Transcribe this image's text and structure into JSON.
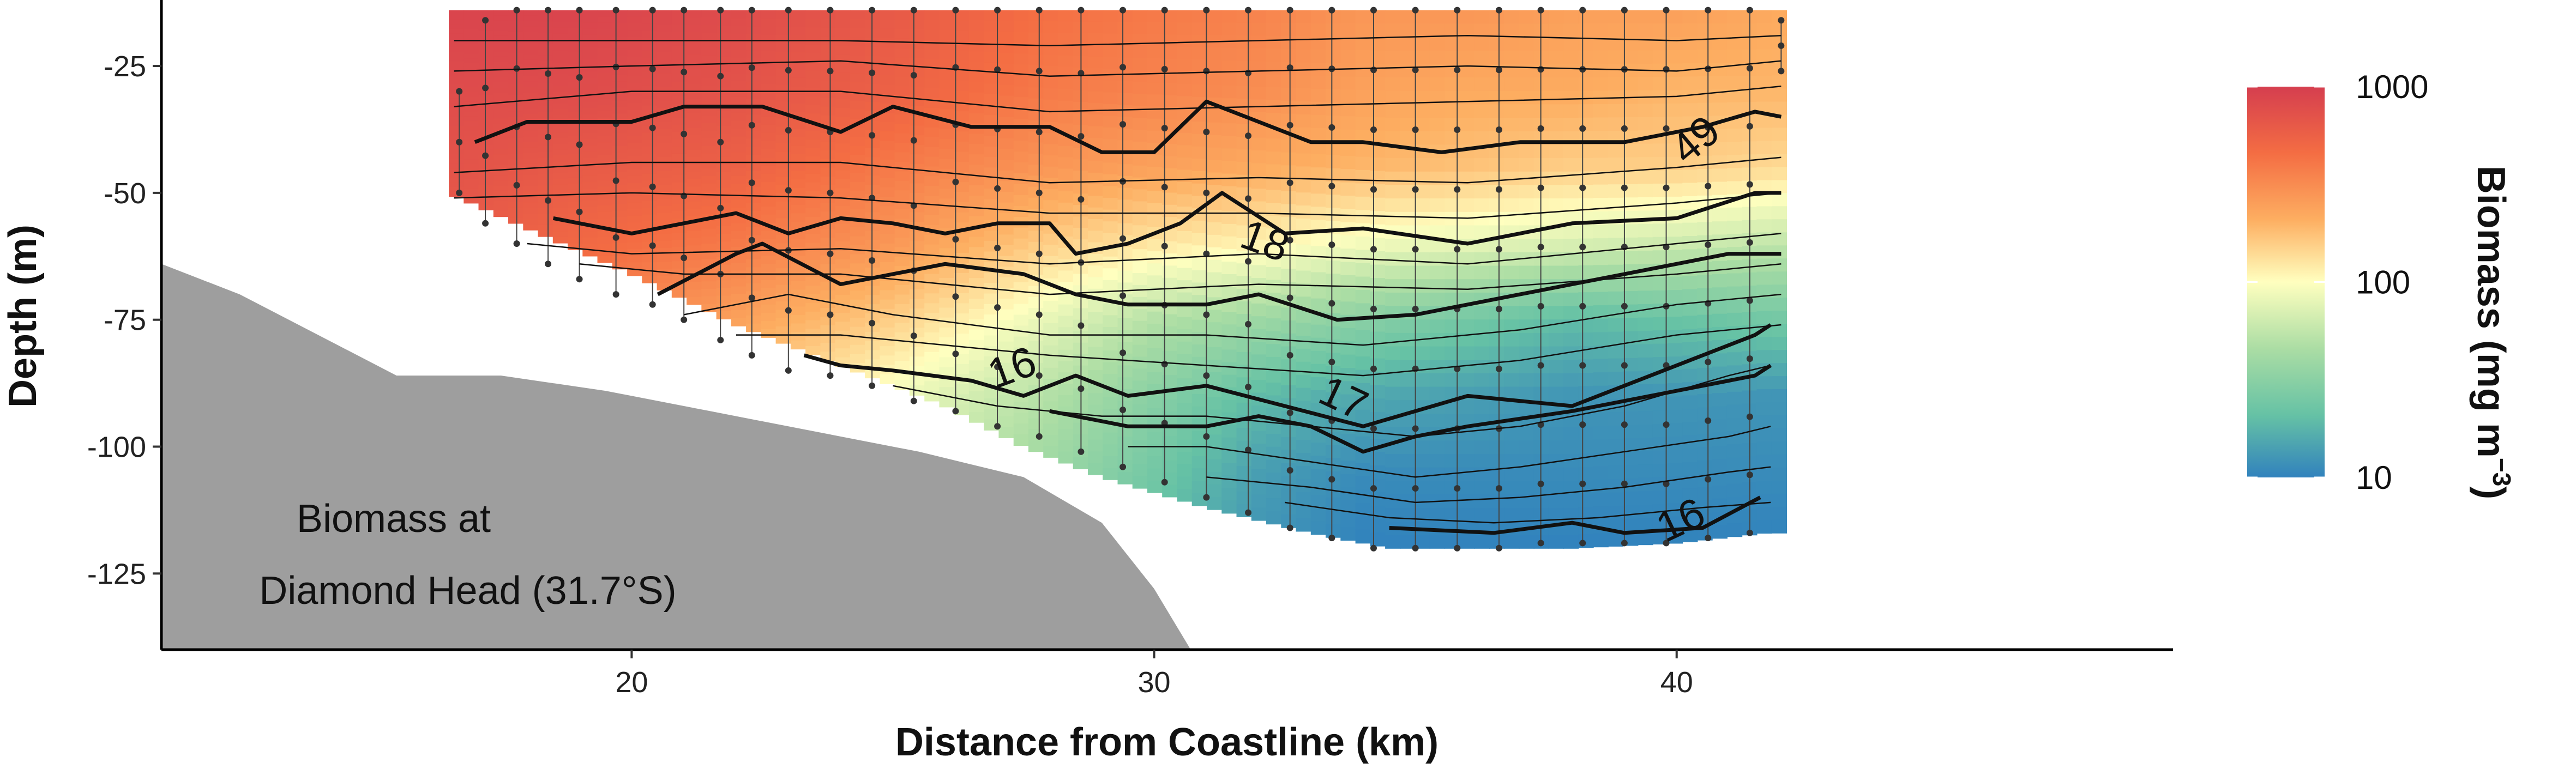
{
  "chart_data": {
    "type": "heatmap",
    "title": "",
    "xlabel": "Distance from Coastline (km)",
    "ylabel": "Depth (m)",
    "xlim": [
      11,
      49.5
    ],
    "ylim": [
      -140,
      -12
    ],
    "x_ticks": [
      20,
      30,
      40
    ],
    "y_ticks": [
      -25,
      -50,
      -75,
      -100,
      -125
    ],
    "grid": false,
    "annotation": {
      "line1": "Biomass at",
      "line2": "Diamond Head (31.7°S)"
    },
    "colorbar": {
      "label_main": "Biomass (mg m",
      "label_sup": "−3",
      "label_close": ")",
      "scale": "log",
      "ticks": [
        "10",
        "100",
        "1000"
      ],
      "tick_values": [
        10,
        100,
        1000
      ],
      "colors": [
        "#3182bd",
        "#66c2a5",
        "#abdda4",
        "#ffffbf",
        "#fdae61",
        "#f46d43",
        "#d53e4f"
      ]
    },
    "bathymetry": {
      "x": [
        11,
        12.5,
        14,
        15.5,
        17.5,
        19.5,
        21.5,
        23,
        25.5,
        27.5,
        29,
        30,
        30.7
      ],
      "depth": [
        -64,
        -70,
        -78,
        -86,
        -86,
        -89,
        -93,
        -96,
        -101,
        -106,
        -115,
        -128,
        -140
      ]
    },
    "section": {
      "top_depth": -14,
      "x_start": 16.5,
      "x_end": 42.1,
      "bottom_x": [
        16.5,
        18,
        20,
        22,
        24,
        26,
        27.5,
        29,
        31,
        33,
        34.5,
        36,
        38,
        40,
        41.7
      ],
      "bottom_depth": [
        -50,
        -57,
        -66,
        -76,
        -84,
        -92,
        -100,
        -106,
        -112,
        -117,
        -120,
        -120,
        -120,
        -119,
        -117
      ]
    },
    "biomass_surface": {
      "x": [
        16.5,
        19,
        22,
        25,
        28,
        30,
        32,
        34,
        36,
        38,
        40,
        42
      ],
      "depth": [
        -15,
        -30,
        -45,
        -60,
        -75,
        -90,
        -105,
        -120
      ],
      "biomass_log10": [
        [
          2.95,
          2.95,
          2.9,
          2.8,
          2.65,
          2.6,
          2.55,
          2.45,
          2.45,
          2.4,
          2.4,
          2.35
        ],
        [
          2.9,
          2.9,
          2.85,
          2.75,
          2.6,
          2.55,
          2.5,
          2.4,
          2.35,
          2.35,
          2.3,
          2.3
        ],
        [
          2.85,
          2.8,
          2.75,
          2.6,
          2.45,
          2.4,
          2.35,
          2.3,
          2.25,
          2.2,
          2.2,
          2.15
        ],
        [
          2.8,
          2.7,
          2.6,
          2.45,
          2.2,
          2.1,
          2.05,
          1.95,
          1.9,
          1.85,
          1.8,
          1.75
        ],
        [
          2.7,
          2.55,
          2.4,
          2.2,
          1.9,
          1.7,
          1.6,
          1.5,
          1.4,
          1.3,
          1.35,
          1.4
        ],
        [
          2.6,
          2.4,
          2.2,
          1.95,
          1.7,
          1.5,
          1.3,
          1.2,
          1.15,
          1.1,
          1.1,
          1.1
        ],
        [
          2.5,
          2.3,
          2.0,
          1.8,
          1.6,
          1.4,
          1.15,
          1.05,
          1.05,
          1.05,
          1.05,
          1.05
        ],
        [
          2.4,
          2.2,
          1.9,
          1.7,
          1.5,
          1.3,
          1.1,
          1.0,
          1.0,
          1.0,
          1.0,
          1.0
        ]
      ]
    },
    "isotherms": [
      {
        "label": "",
        "bold": false,
        "x": [
          16.6,
          20,
          24,
          28,
          32,
          36,
          40,
          42
        ],
        "depth": [
          -20,
          -20,
          -20,
          -21,
          -20,
          -19,
          -20,
          -19
        ]
      },
      {
        "label": "",
        "bold": false,
        "x": [
          16.6,
          20,
          24,
          28,
          32,
          36,
          40,
          42
        ],
        "depth": [
          -26,
          -25,
          -24,
          -27,
          -26,
          -25,
          -26,
          -24
        ]
      },
      {
        "label": "",
        "bold": false,
        "x": [
          16.6,
          20,
          24,
          28,
          32,
          36,
          40,
          42
        ],
        "depth": [
          -33,
          -30,
          -30,
          -34,
          -33,
          -32,
          -31,
          -29
        ]
      },
      {
        "label": "",
        "bold": true,
        "x": [
          17,
          18,
          20,
          21,
          22.5,
          24,
          25,
          26.5,
          28,
          29,
          30,
          31,
          32,
          33,
          34,
          35.5,
          37,
          39,
          40.5,
          41.5,
          42
        ],
        "depth": [
          -40,
          -36,
          -36,
          -33,
          -33,
          -38,
          -33,
          -37,
          -37,
          -42,
          -42,
          -32,
          -36,
          -40,
          -40,
          -42,
          -40,
          -40,
          -37,
          -34,
          -35
        ]
      },
      {
        "label": "",
        "bold": false,
        "x": [
          16.6,
          20,
          24,
          28,
          32,
          36,
          40,
          42
        ],
        "depth": [
          -46,
          -44,
          -44,
          -48,
          -47,
          -48,
          -45,
          -43
        ]
      },
      {
        "label": "",
        "bold": false,
        "x": [
          16.6,
          20,
          24,
          28,
          32,
          36,
          40,
          42
        ],
        "depth": [
          -51,
          -50,
          -51,
          -54,
          -54,
          -55,
          -52,
          -50
        ]
      },
      {
        "label": "",
        "bold": true,
        "x": [
          18.5,
          20,
          22,
          23,
          24,
          25,
          26,
          27,
          28,
          28.5,
          29.5,
          30.5,
          31.3,
          32.5,
          34,
          36,
          38,
          40,
          41.5,
          42
        ],
        "depth": [
          -55,
          -58,
          -54,
          -58,
          -55,
          -56,
          -58,
          -56,
          -56,
          -62,
          -60,
          -56,
          -50,
          -58,
          -57,
          -60,
          -56,
          -55,
          -50,
          -50
        ]
      },
      {
        "label": "",
        "bold": false,
        "x": [
          18,
          20,
          24,
          28,
          32,
          36,
          40,
          42
        ],
        "depth": [
          -60,
          -62,
          -61,
          -64,
          -62,
          -64,
          -60,
          -58
        ]
      },
      {
        "label": "",
        "bold": false,
        "x": [
          19,
          21,
          24,
          28,
          32,
          36,
          40,
          42
        ],
        "depth": [
          -64,
          -66,
          -66,
          -70,
          -68,
          -69,
          -66,
          -64
        ]
      },
      {
        "label": "18",
        "bold": true,
        "x": [
          20.5,
          22,
          22.5,
          24,
          26,
          27.5,
          28.5,
          29.5,
          31,
          32,
          33.5,
          35,
          37,
          39,
          41,
          42
        ],
        "depth": [
          -70,
          -62,
          -60,
          -68,
          -64,
          -66,
          -70,
          -72,
          -72,
          -70,
          -75,
          -74,
          -70,
          -66,
          -62,
          -62
        ]
      },
      {
        "label": "",
        "bold": false,
        "x": [
          21,
          23,
          25,
          28,
          31,
          34,
          37,
          40,
          42
        ],
        "depth": [
          -74,
          -70,
          -74,
          -78,
          -78,
          -80,
          -77,
          -72,
          -70
        ]
      },
      {
        "label": "",
        "bold": false,
        "x": [
          22,
          24,
          26,
          28,
          31,
          34,
          37,
          40,
          42
        ],
        "depth": [
          -78,
          -78,
          -80,
          -82,
          -84,
          -86,
          -83,
          -78,
          -76
        ]
      },
      {
        "label": "16",
        "bold": true,
        "x": [
          23.3,
          24,
          25,
          26.5,
          27.5,
          28.5,
          29.5,
          31,
          32.5,
          34,
          36,
          38,
          40,
          41.5,
          41.8
        ],
        "depth": [
          -82,
          -84,
          -85,
          -87,
          -90,
          -86,
          -90,
          -88,
          -92,
          -96,
          -90,
          -92,
          -84,
          -78,
          -76
        ]
      },
      {
        "label": "",
        "bold": false,
        "x": [
          25,
          27,
          29,
          31,
          33,
          35,
          37,
          39,
          41,
          41.8
        ],
        "depth": [
          -88,
          -92,
          -94,
          -94,
          -96,
          -98,
          -96,
          -92,
          -86,
          -84
        ]
      },
      {
        "label": "17",
        "bold": true,
        "x": [
          28,
          29.5,
          31,
          32,
          33,
          34,
          35,
          36,
          38,
          40,
          41.5,
          41.8
        ],
        "depth": [
          -93,
          -96,
          -96,
          -94,
          -96,
          -101,
          -98,
          -96,
          -93,
          -89,
          -86,
          -84
        ]
      },
      {
        "label": "",
        "bold": false,
        "x": [
          29.5,
          31,
          33,
          35,
          37,
          39,
          41,
          41.8
        ],
        "depth": [
          -100,
          -100,
          -103,
          -106,
          -104,
          -101,
          -98,
          -96
        ]
      },
      {
        "label": "",
        "bold": false,
        "x": [
          31,
          33,
          35,
          37,
          39,
          41,
          41.8
        ],
        "depth": [
          -106,
          -108,
          -111,
          -110,
          -108,
          -105,
          -104
        ]
      },
      {
        "label": "",
        "bold": false,
        "x": [
          32.5,
          34.5,
          36.5,
          38.5,
          40.5,
          41.8
        ],
        "depth": [
          -111,
          -114,
          -115,
          -114,
          -112,
          -111
        ]
      },
      {
        "label": "16",
        "bold": true,
        "x": [
          34.5,
          36.5,
          38,
          39,
          40.5,
          41.6
        ],
        "depth": [
          -116,
          -117,
          -115,
          -117,
          -116,
          -110
        ]
      }
    ],
    "contour_labels": [
      {
        "text": "49",
        "x": 40.4,
        "depth": -40,
        "angle": -40
      },
      {
        "text": "18",
        "x": 32.1,
        "depth": -60,
        "angle": 20
      },
      {
        "text": "16",
        "x": 27.3,
        "depth": -85,
        "angle": -20
      },
      {
        "text": "17",
        "x": 33.6,
        "depth": -91,
        "angle": 25
      },
      {
        "text": "16",
        "x": 40.1,
        "depth": -115,
        "angle": -25
      }
    ],
    "stations": [
      {
        "x": 16.7,
        "top": -30,
        "bottom": -50
      },
      {
        "x": 17.2,
        "top": -16,
        "bottom": -56
      },
      {
        "x": 17.8,
        "top": -14,
        "bottom": -60
      },
      {
        "x": 18.4,
        "top": -14,
        "bottom": -64
      },
      {
        "x": 19.0,
        "top": -14,
        "bottom": -67
      },
      {
        "x": 19.7,
        "top": -14,
        "bottom": -70
      },
      {
        "x": 20.4,
        "top": -14,
        "bottom": -72
      },
      {
        "x": 21.0,
        "top": -14,
        "bottom": -75
      },
      {
        "x": 21.7,
        "top": -14,
        "bottom": -79
      },
      {
        "x": 22.3,
        "top": -14,
        "bottom": -82
      },
      {
        "x": 23.0,
        "top": -14,
        "bottom": -85
      },
      {
        "x": 23.8,
        "top": -14,
        "bottom": -86
      },
      {
        "x": 24.6,
        "top": -14,
        "bottom": -88
      },
      {
        "x": 25.4,
        "top": -14,
        "bottom": -91
      },
      {
        "x": 26.2,
        "top": -14,
        "bottom": -93
      },
      {
        "x": 27.0,
        "top": -14,
        "bottom": -96
      },
      {
        "x": 27.8,
        "top": -14,
        "bottom": -98
      },
      {
        "x": 28.6,
        "top": -14,
        "bottom": -101
      },
      {
        "x": 29.4,
        "top": -14,
        "bottom": -104
      },
      {
        "x": 30.2,
        "top": -14,
        "bottom": -107
      },
      {
        "x": 31.0,
        "top": -14,
        "bottom": -110
      },
      {
        "x": 31.8,
        "top": -14,
        "bottom": -113
      },
      {
        "x": 32.6,
        "top": -14,
        "bottom": -116
      },
      {
        "x": 33.4,
        "top": -14,
        "bottom": -118
      },
      {
        "x": 34.2,
        "top": -14,
        "bottom": -120
      },
      {
        "x": 35.0,
        "top": -14,
        "bottom": -120
      },
      {
        "x": 35.8,
        "top": -14,
        "bottom": -120
      },
      {
        "x": 36.6,
        "top": -14,
        "bottom": -120
      },
      {
        "x": 37.4,
        "top": -14,
        "bottom": -119
      },
      {
        "x": 38.2,
        "top": -14,
        "bottom": -119
      },
      {
        "x": 39.0,
        "top": -14,
        "bottom": -119
      },
      {
        "x": 39.8,
        "top": -14,
        "bottom": -119
      },
      {
        "x": 40.6,
        "top": -14,
        "bottom": -118
      },
      {
        "x": 41.4,
        "top": -14,
        "bottom": -117
      },
      {
        "x": 42.0,
        "top": -16,
        "bottom": -26
      }
    ]
  }
}
